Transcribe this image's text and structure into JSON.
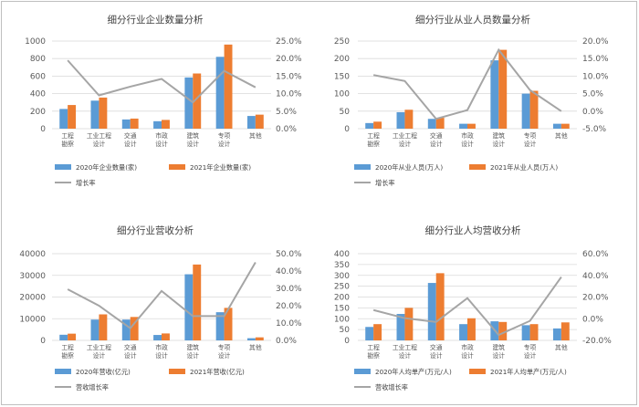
{
  "colors": {
    "series2020": "#5B9BD5",
    "series2021": "#ED7D31",
    "growth": "#A5A5A5",
    "grid": "#D9D9D9"
  },
  "chart_data": [
    {
      "type": "bar",
      "title": "细分行业企业数量分析",
      "categories": [
        [
          "工程",
          "勘察"
        ],
        [
          "工业工程",
          "设计"
        ],
        [
          "交通",
          "设计"
        ],
        [
          "市政",
          "设计"
        ],
        [
          "建筑",
          "设计"
        ],
        [
          "专项",
          "设计"
        ],
        [
          "其他"
        ]
      ],
      "series": [
        {
          "name": "2020年企业数量(家)",
          "values": [
            225,
            320,
            105,
            85,
            585,
            820,
            145
          ]
        },
        {
          "name": "2021年企业数量(家)",
          "values": [
            270,
            355,
            115,
            100,
            630,
            960,
            160
          ]
        }
      ],
      "line": {
        "name": "增长率",
        "values": [
          19.5,
          9.5,
          12.0,
          14.2,
          7.5,
          16.5,
          11.8
        ]
      },
      "ylim": [
        0,
        1000
      ],
      "yticks": [
        "0",
        "200",
        "400",
        "600",
        "800",
        "1000"
      ],
      "y2lim": [
        0,
        25
      ],
      "y2ticks": [
        "0.0%",
        "5.0%",
        "10.0%",
        "15.0%",
        "20.0%",
        "25.0%"
      ]
    },
    {
      "type": "bar",
      "title": "细分行业从业人员数量分析",
      "categories": [
        [
          "工程",
          "勘察"
        ],
        [
          "工业工程",
          "设计"
        ],
        [
          "交通",
          "设计"
        ],
        [
          "市政",
          "设计"
        ],
        [
          "建筑",
          "设计"
        ],
        [
          "专项",
          "设计"
        ],
        [
          "其他"
        ]
      ],
      "series": [
        {
          "name": "2020年从业人员(万人)",
          "values": [
            16,
            47,
            28,
            14,
            195,
            100,
            14
          ]
        },
        {
          "name": "2021年从业人员(万人)",
          "values": [
            20,
            54,
            31,
            14,
            225,
            108,
            14
          ]
        }
      ],
      "line": {
        "name": "增长率",
        "values": [
          10.3,
          8.6,
          -2.2,
          0.3,
          17.5,
          6.0,
          0.0
        ]
      },
      "ylim": [
        0,
        250
      ],
      "yticks": [
        "0",
        "50",
        "100",
        "150",
        "200",
        "250"
      ],
      "y2lim": [
        -5,
        20
      ],
      "y2ticks": [
        "-5.0%",
        "0.0%",
        "5.0%",
        "10.0%",
        "15.0%",
        "20.0%"
      ]
    },
    {
      "type": "bar",
      "title": "细分行业营收分析",
      "categories": [
        [
          "工程",
          "勘察"
        ],
        [
          "工业工程",
          "设计"
        ],
        [
          "交通",
          "设计"
        ],
        [
          "市政",
          "设计"
        ],
        [
          "建筑",
          "设计"
        ],
        [
          "专项",
          "设计"
        ],
        [
          "其他"
        ]
      ],
      "series": [
        {
          "name": "2020年营收(亿元)",
          "values": [
            2600,
            9600,
            9600,
            2500,
            30500,
            13000,
            1000
          ]
        },
        {
          "name": "2021年营收(亿元)",
          "values": [
            3100,
            12000,
            10800,
            3200,
            35000,
            15000,
            1400
          ]
        }
      ],
      "line": {
        "name": "营收增长率",
        "values": [
          29.5,
          20.0,
          7.0,
          28.5,
          14.0,
          14.0,
          45.0
        ]
      },
      "ylim": [
        0,
        40000
      ],
      "yticks": [
        "0",
        "10000",
        "20000",
        "30000",
        "40000"
      ],
      "y2lim": [
        0,
        50
      ],
      "y2ticks": [
        "0.0%",
        "10.0%",
        "20.0%",
        "30.0%",
        "40.0%",
        "50.0%"
      ]
    },
    {
      "type": "bar",
      "title": "细分行业人均营收分析",
      "categories": [
        [
          "工程",
          "勘察"
        ],
        [
          "工业工程",
          "设计"
        ],
        [
          "交通",
          "设计"
        ],
        [
          "市政",
          "设计"
        ],
        [
          "建筑",
          "设计"
        ],
        [
          "专项",
          "设计"
        ],
        [
          "其他"
        ]
      ],
      "series": [
        {
          "name": "2020年人均单产(万元/人)",
          "values": [
            62,
            122,
            265,
            75,
            88,
            70,
            55
          ]
        },
        {
          "name": "2021年人均单产(万元/人)",
          "values": [
            75,
            150,
            310,
            102,
            85,
            75,
            83
          ]
        }
      ],
      "line": {
        "name": "营收增长率",
        "values": [
          8.0,
          0.5,
          -3.0,
          19.0,
          -15.0,
          -2.0,
          38.5
        ]
      },
      "ylim": [
        0,
        400
      ],
      "yticks": [
        "0",
        "50",
        "100",
        "150",
        "200",
        "250",
        "300",
        "350",
        "400"
      ],
      "y2lim": [
        -20,
        60
      ],
      "y2ticks": [
        "-20.0%",
        "0.0%",
        "20.0%",
        "40.0%",
        "60.0%"
      ]
    }
  ]
}
